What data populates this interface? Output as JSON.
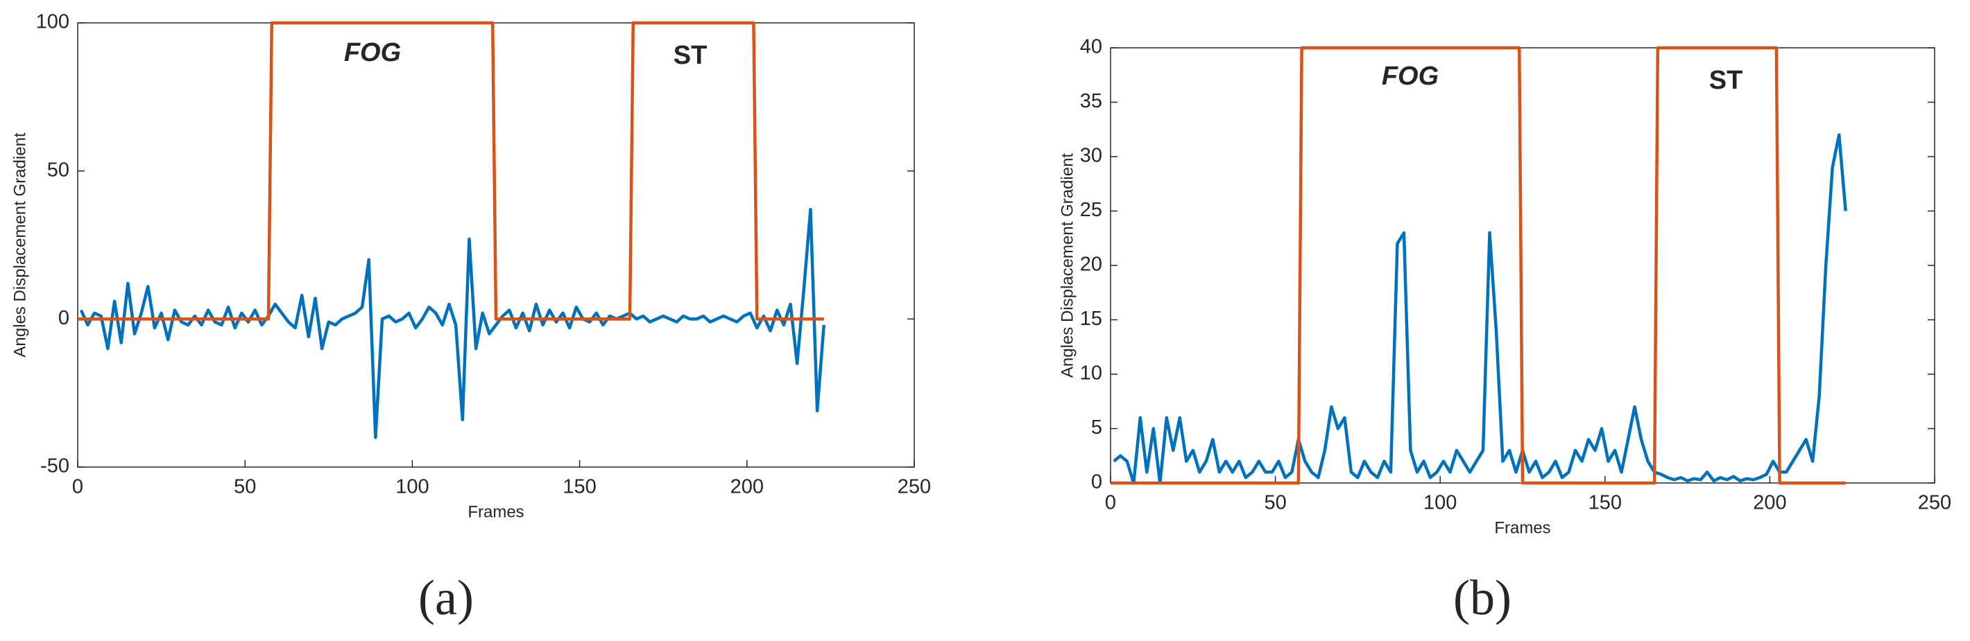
{
  "chart_data": [
    {
      "type": "line",
      "caption": "(a)",
      "xlabel": "Frames",
      "ylabel": "Angles Displacement Gradient",
      "annotations": [
        "FOG",
        "ST"
      ],
      "xlim": [
        0,
        250
      ],
      "xticks": [
        0,
        50,
        100,
        150,
        200,
        250
      ],
      "ylim": [
        -50,
        100
      ],
      "yticks": [
        -50,
        0,
        50,
        100
      ],
      "series": [
        {
          "color": "#0072bd",
          "x": [
            1,
            3,
            5,
            7,
            9,
            11,
            13,
            15,
            17,
            19,
            21,
            23,
            25,
            27,
            29,
            31,
            33,
            35,
            37,
            39,
            41,
            43,
            45,
            47,
            49,
            51,
            53,
            55,
            57,
            59,
            61,
            63,
            65,
            67,
            69,
            71,
            73,
            75,
            77,
            79,
            81,
            83,
            85,
            87,
            89,
            91,
            93,
            95,
            97,
            99,
            101,
            103,
            105,
            107,
            109,
            111,
            113,
            115,
            117,
            119,
            121,
            123,
            125,
            127,
            129,
            131,
            133,
            135,
            137,
            139,
            141,
            143,
            145,
            147,
            149,
            151,
            153,
            155,
            157,
            159,
            161,
            163,
            165,
            167,
            169,
            171,
            173,
            175,
            177,
            179,
            181,
            183,
            185,
            187,
            189,
            191,
            193,
            195,
            197,
            199,
            201,
            203,
            205,
            207,
            209,
            211,
            213,
            215,
            217,
            219,
            221,
            223
          ],
          "values": [
            3,
            -2,
            2,
            1,
            -10,
            6,
            -8,
            12,
            -5,
            2,
            11,
            -3,
            2,
            -7,
            3,
            -1,
            -2,
            1,
            -2,
            3,
            -1,
            -2,
            4,
            -3,
            2,
            -1,
            3,
            -2,
            1,
            5,
            2,
            -1,
            -3,
            8,
            -6,
            7,
            -10,
            -1,
            -2,
            0,
            1,
            2,
            4,
            20,
            -40,
            0,
            1,
            -1,
            0,
            2,
            -3,
            0,
            4,
            2,
            -2,
            5,
            -2,
            -34,
            27,
            -10,
            2,
            -5,
            -2,
            1,
            3,
            -3,
            2,
            -4,
            5,
            -2,
            3,
            -1,
            2,
            -3,
            4,
            0,
            -1,
            2,
            -2,
            1,
            0,
            1,
            2,
            0,
            1,
            -1,
            0,
            1,
            0,
            -1,
            1,
            0,
            0,
            1,
            -1,
            0,
            1,
            0,
            -1,
            1,
            2,
            -3,
            1,
            -4,
            3,
            -2,
            5,
            -15,
            10,
            37,
            -31,
            -2
          ]
        },
        {
          "color": "#d95319",
          "x": [
            0,
            57,
            58,
            124,
            125,
            165,
            166,
            202,
            203,
            223
          ],
          "values": [
            0,
            0,
            100,
            100,
            0,
            0,
            100,
            100,
            0,
            0
          ]
        }
      ]
    },
    {
      "type": "line",
      "caption": "(b)",
      "xlabel": "Frames",
      "ylabel": "Angles Displacement Gradient",
      "annotations": [
        "FOG",
        "ST"
      ],
      "xlim": [
        0,
        250
      ],
      "xticks": [
        0,
        50,
        100,
        150,
        200,
        250
      ],
      "ylim": [
        0,
        40
      ],
      "yticks": [
        0,
        5,
        10,
        15,
        20,
        25,
        30,
        35,
        40
      ],
      "series": [
        {
          "color": "#0072bd",
          "x": [
            1,
            3,
            5,
            7,
            9,
            11,
            13,
            15,
            17,
            19,
            21,
            23,
            25,
            27,
            29,
            31,
            33,
            35,
            37,
            39,
            41,
            43,
            45,
            47,
            49,
            51,
            53,
            55,
            57,
            59,
            61,
            63,
            65,
            67,
            69,
            71,
            73,
            75,
            77,
            79,
            81,
            83,
            85,
            87,
            89,
            91,
            93,
            95,
            97,
            99,
            101,
            103,
            105,
            107,
            109,
            111,
            113,
            115,
            117,
            119,
            121,
            123,
            125,
            127,
            129,
            131,
            133,
            135,
            137,
            139,
            141,
            143,
            145,
            147,
            149,
            151,
            153,
            155,
            157,
            159,
            161,
            163,
            165,
            167,
            169,
            171,
            173,
            175,
            177,
            179,
            181,
            183,
            185,
            187,
            189,
            191,
            193,
            195,
            197,
            199,
            201,
            203,
            205,
            207,
            209,
            211,
            213,
            215,
            217,
            219,
            221,
            223
          ],
          "values": [
            2,
            2.5,
            2,
            0,
            6,
            1,
            5,
            0,
            6,
            3,
            6,
            2,
            3,
            1,
            2,
            4,
            1,
            2,
            1,
            2,
            0.5,
            1,
            2,
            1,
            1,
            2,
            0.5,
            1,
            4,
            2,
            1,
            0.5,
            3,
            7,
            5,
            6,
            1,
            0.5,
            2,
            1,
            0.5,
            2,
            1,
            22,
            23,
            3,
            1,
            2,
            0.5,
            1,
            2,
            1,
            3,
            2,
            1,
            2,
            3,
            23,
            14,
            2,
            3,
            1,
            3,
            1,
            2,
            0.5,
            1,
            2,
            0.5,
            1,
            3,
            2,
            4,
            3,
            5,
            2,
            3,
            1,
            4,
            7,
            4,
            2,
            1,
            0.8,
            0.5,
            0.3,
            0.5,
            0.2,
            0.4,
            0.3,
            1,
            0.2,
            0.5,
            0.3,
            0.6,
            0.2,
            0.4,
            0.3,
            0.5,
            0.8,
            2,
            1,
            1,
            2,
            3,
            4,
            2,
            8,
            20,
            29,
            32,
            25
          ]
        },
        {
          "color": "#d95319",
          "x": [
            0,
            57,
            58,
            124,
            125,
            165,
            166,
            202,
            203,
            223
          ],
          "values": [
            0,
            0,
            40,
            40,
            0,
            0,
            40,
            40,
            0,
            0
          ]
        }
      ]
    }
  ]
}
